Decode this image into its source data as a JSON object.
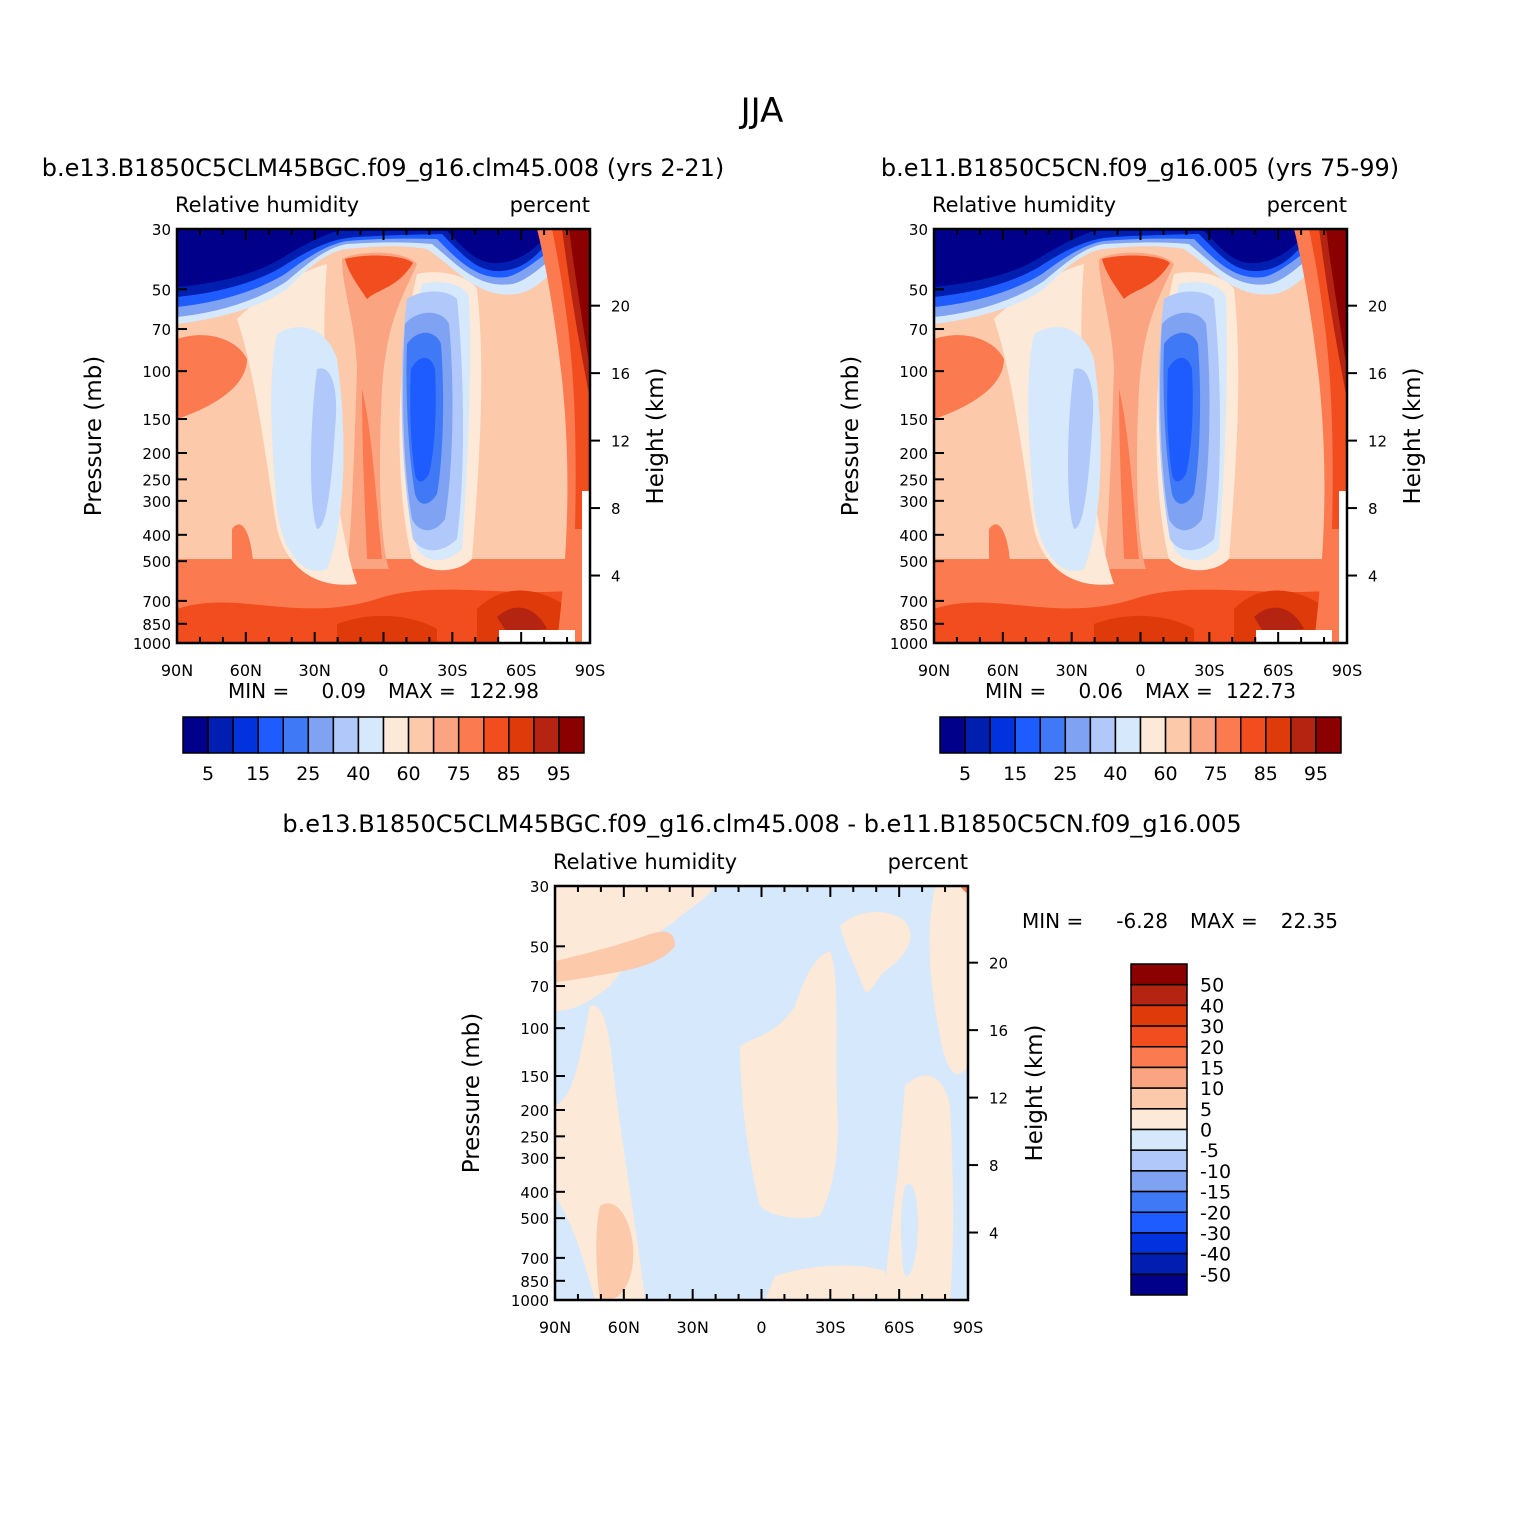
{
  "page_title": "JJA",
  "chart_data": [
    {
      "type": "heatmap",
      "id": "p1",
      "title": "b.e13.B1850C5CLM45BGC.f09_g16.clm45.008 (yrs 2-21)",
      "left_label": "Relative humidity",
      "right_label": "percent",
      "ylabel": "Pressure (mb)",
      "ylabel_right": "Height (km)",
      "x_ticks": [
        "90N",
        "60N",
        "30N",
        "0",
        "30S",
        "60S",
        "90S"
      ],
      "y_ticks": [
        "30",
        "50",
        "70",
        "100",
        "150",
        "200",
        "250",
        "300",
        "400",
        "500",
        "700",
        "850",
        "1000"
      ],
      "height_ticks": [
        "20",
        "16",
        "12",
        "8",
        "4"
      ],
      "min_label": "MIN =",
      "min_value": "0.09",
      "max_label": "MAX =",
      "max_value": "122.98",
      "colorbar": {
        "orientation": "horizontal",
        "colors": [
          "#00008a",
          "#001fb0",
          "#0033dd",
          "#1f5cff",
          "#4079f5",
          "#7fa2f2",
          "#b0c8fa",
          "#d6e8fb",
          "#fde9d8",
          "#fcc9ab",
          "#fba482",
          "#fb7a4f",
          "#f24d1e",
          "#de3a0a",
          "#b52411",
          "#8b0000"
        ],
        "labels": [
          "5",
          "15",
          "25",
          "40",
          "60",
          "75",
          "85",
          "95"
        ]
      }
    },
    {
      "type": "heatmap",
      "id": "p2",
      "title": "b.e11.B1850C5CN.f09_g16.005 (yrs 75-99)",
      "left_label": "Relative humidity",
      "right_label": "percent",
      "ylabel": "Pressure (mb)",
      "ylabel_right": "Height (km)",
      "x_ticks": [
        "90N",
        "60N",
        "30N",
        "0",
        "30S",
        "60S",
        "90S"
      ],
      "y_ticks": [
        "30",
        "50",
        "70",
        "100",
        "150",
        "200",
        "250",
        "300",
        "400",
        "500",
        "700",
        "850",
        "1000"
      ],
      "height_ticks": [
        "20",
        "16",
        "12",
        "8",
        "4"
      ],
      "min_label": "MIN =",
      "min_value": "0.06",
      "max_label": "MAX =",
      "max_value": "122.73",
      "colorbar": {
        "orientation": "horizontal",
        "colors": [
          "#00008a",
          "#001fb0",
          "#0033dd",
          "#1f5cff",
          "#4079f5",
          "#7fa2f2",
          "#b0c8fa",
          "#d6e8fb",
          "#fde9d8",
          "#fcc9ab",
          "#fba482",
          "#fb7a4f",
          "#f24d1e",
          "#de3a0a",
          "#b52411",
          "#8b0000"
        ],
        "labels": [
          "5",
          "15",
          "25",
          "40",
          "60",
          "75",
          "85",
          "95"
        ]
      }
    },
    {
      "type": "heatmap",
      "id": "p3",
      "title": "b.e13.B1850C5CLM45BGC.f09_g16.clm45.008 - b.e11.B1850C5CN.f09_g16.005",
      "left_label": "Relative humidity",
      "right_label": "percent",
      "ylabel": "Pressure (mb)",
      "ylabel_right": "Height (km)",
      "x_ticks": [
        "90N",
        "60N",
        "30N",
        "0",
        "30S",
        "60S",
        "90S"
      ],
      "y_ticks": [
        "30",
        "50",
        "70",
        "100",
        "150",
        "200",
        "250",
        "300",
        "400",
        "500",
        "700",
        "850",
        "1000"
      ],
      "height_ticks": [
        "20",
        "16",
        "12",
        "8",
        "4"
      ],
      "min_label": "MIN =",
      "min_value": "-6.28",
      "max_label": "MAX =",
      "max_value": "22.35",
      "colorbar": {
        "orientation": "vertical",
        "colors": [
          "#8b0000",
          "#b52411",
          "#de3a0a",
          "#f24d1e",
          "#fb7a4f",
          "#fba482",
          "#fcc9ab",
          "#fde9d8",
          "#d6e8fb",
          "#b0c8fa",
          "#7fa2f2",
          "#4079f5",
          "#1f5cff",
          "#0033dd",
          "#001fb0",
          "#00008a"
        ],
        "labels": [
          "50",
          "40",
          "30",
          "20",
          "15",
          "10",
          "5",
          "0",
          "-5",
          "-10",
          "-15",
          "-20",
          "-30",
          "-40",
          "-50"
        ]
      }
    }
  ]
}
